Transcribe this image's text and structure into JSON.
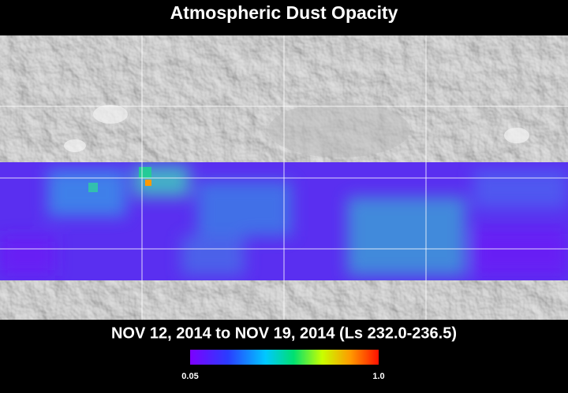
{
  "title": "Atmospheric Dust Opacity",
  "period": "NOV 12, 2014 to NOV 19, 2014 (Ls 232.0-236.5)",
  "colorbar": {
    "lim": [
      0.05,
      1
    ],
    "ticks": [
      0.05,
      {
        "value": 1,
        "label": "1.0"
      }
    ]
  }
}
